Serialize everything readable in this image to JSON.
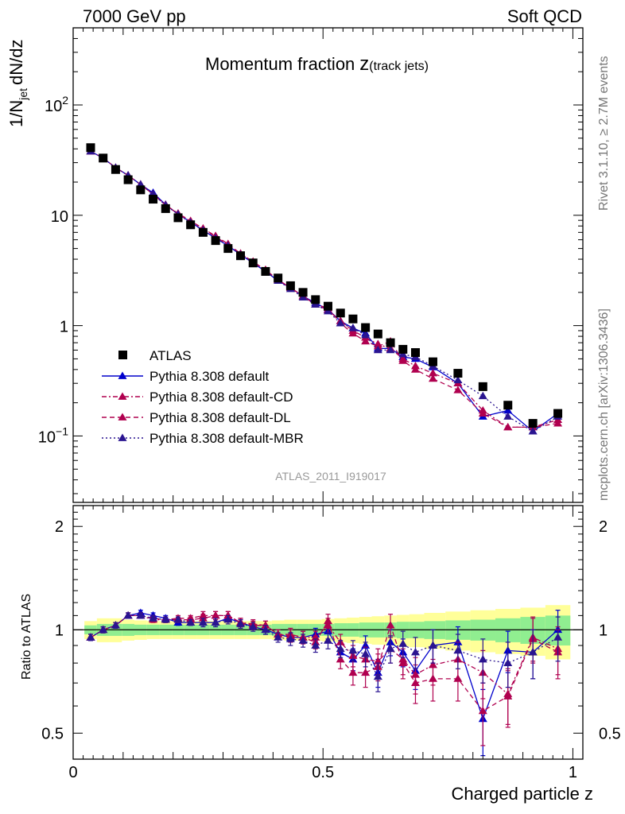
{
  "header": {
    "left": "7000 GeV pp",
    "right": "Soft QCD"
  },
  "plot": {
    "title": "Momentum fraction",
    "title_symbol": "z",
    "title_sub": "(track jets)",
    "watermark": "ATLAS_2011_I919017",
    "ylabel_main": "1/N",
    "ylabel_main_sub": "jet",
    "ylabel_main_rest": "dN/dz",
    "ylabel_ratio": "Ratio to ATLAS",
    "xlabel": "Charged particle z"
  },
  "side": {
    "rivet": "Rivet 3.1.10, ≥ 2.7M events",
    "mcplots": "mcplots.cern.ch [arXiv:1306.3436]"
  },
  "legend": [
    {
      "name": "ATLAS",
      "color": "#000000",
      "style": "data",
      "marker": "square"
    },
    {
      "name": "Pythia 8.308 default",
      "color": "#0000cc",
      "style": "solid",
      "marker": "triangle"
    },
    {
      "name": "Pythia 8.308 default-CD",
      "color": "#b0004f",
      "style": "dashdot",
      "marker": "triangle"
    },
    {
      "name": "Pythia 8.308 default-DL",
      "color": "#b0004f",
      "style": "dashed",
      "marker": "triangle"
    },
    {
      "name": "Pythia 8.308 default-MBR",
      "color": "#2a1490",
      "style": "dotted",
      "marker": "triangle"
    }
  ],
  "colors": {
    "band_green": "#90ee90",
    "band_yellow": "#ffff99"
  },
  "chart_data": {
    "type": "scatter",
    "x": [
      0.035,
      0.06,
      0.085,
      0.11,
      0.135,
      0.16,
      0.185,
      0.21,
      0.235,
      0.26,
      0.285,
      0.31,
      0.335,
      0.36,
      0.385,
      0.41,
      0.435,
      0.46,
      0.485,
      0.51,
      0.535,
      0.56,
      0.585,
      0.61,
      0.635,
      0.66,
      0.685,
      0.72,
      0.77,
      0.82,
      0.87,
      0.92,
      0.97
    ],
    "main": {
      "yscale": "log",
      "ylim": [
        0.025,
        500
      ],
      "yticks": [
        "10^-1",
        "1",
        "10",
        "10^2"
      ],
      "ATLAS": [
        41,
        33,
        26,
        21,
        17,
        14,
        11.5,
        9.5,
        8.2,
        7.0,
        5.9,
        5.0,
        4.3,
        3.7,
        3.1,
        2.7,
        2.3,
        2.0,
        1.72,
        1.5,
        1.3,
        1.15,
        0.96,
        0.84,
        0.7,
        0.61,
        0.57,
        0.47,
        0.37,
        0.28,
        0.19,
        0.13,
        0.16
      ],
      "series": [
        {
          "name": "Pythia 8.308 default",
          "values": [
            38,
            33,
            27,
            23,
            19,
            16,
            12.5,
            10.2,
            8.7,
            7.3,
            6.2,
            5.3,
            4.4,
            3.7,
            3.1,
            2.55,
            2.2,
            1.85,
            1.6,
            1.4,
            1.1,
            0.95,
            0.85,
            0.62,
            0.62,
            0.52,
            0.5,
            0.42,
            0.3,
            0.15,
            0.17,
            0.11,
            0.16
          ]
        },
        {
          "name": "Pythia 8.308 default-CD",
          "values": [
            38,
            33,
            27,
            23,
            19,
            15.5,
            12.4,
            10.3,
            8.8,
            7.5,
            6.4,
            5.4,
            4.5,
            3.8,
            3.2,
            2.6,
            2.2,
            1.85,
            1.55,
            1.38,
            1.1,
            0.9,
            0.78,
            0.68,
            0.62,
            0.5,
            0.43,
            0.37,
            0.3,
            0.17,
            0.12,
            0.12,
            0.14
          ]
        },
        {
          "name": "Pythia 8.308 default-DL",
          "values": [
            38,
            33,
            27,
            23,
            19,
            15.5,
            12.4,
            10.4,
            8.9,
            7.6,
            6.5,
            5.5,
            4.5,
            3.8,
            3.2,
            2.6,
            2.2,
            1.85,
            1.55,
            1.45,
            1.05,
            0.85,
            0.72,
            0.65,
            0.72,
            0.48,
            0.4,
            0.33,
            0.26,
            0.16,
            0.12,
            0.12,
            0.13
          ]
        },
        {
          "name": "Pythia 8.308 default-MBR",
          "values": [
            38,
            33,
            27,
            23,
            19,
            15.5,
            12.3,
            10.2,
            8.6,
            7.3,
            6.2,
            5.3,
            4.4,
            3.7,
            3.1,
            2.55,
            2.15,
            1.8,
            1.55,
            1.35,
            1.05,
            0.95,
            0.82,
            0.6,
            0.6,
            0.55,
            0.52,
            0.43,
            0.32,
            0.23,
            0.15,
            0.11,
            0.15
          ]
        }
      ]
    },
    "ratio": {
      "ylim": [
        0.42,
        2.3
      ],
      "yticks": [
        "0.5",
        "1",
        "2"
      ],
      "green_band_halfwidth": [
        0.03,
        0.04,
        0.04,
        0.04,
        0.035,
        0.035,
        0.035,
        0.035,
        0.035,
        0.035,
        0.035,
        0.035,
        0.035,
        0.035,
        0.035,
        0.04,
        0.04,
        0.04,
        0.04,
        0.04,
        0.045,
        0.045,
        0.05,
        0.05,
        0.05,
        0.055,
        0.055,
        0.06,
        0.065,
        0.07,
        0.08,
        0.09,
        0.1
      ],
      "yellow_band_halfwidth": [
        0.06,
        0.08,
        0.08,
        0.07,
        0.065,
        0.06,
        0.06,
        0.06,
        0.06,
        0.06,
        0.06,
        0.06,
        0.06,
        0.06,
        0.06,
        0.065,
        0.07,
        0.07,
        0.07,
        0.075,
        0.08,
        0.085,
        0.09,
        0.095,
        0.1,
        0.105,
        0.11,
        0.12,
        0.13,
        0.14,
        0.15,
        0.16,
        0.18
      ],
      "series": [
        {
          "name": "Pythia 8.308 default",
          "values": [
            0.95,
            1.0,
            1.03,
            1.1,
            1.12,
            1.1,
            1.08,
            1.05,
            1.05,
            1.05,
            1.05,
            1.08,
            1.05,
            1.02,
            1.0,
            0.97,
            0.95,
            0.95,
            0.97,
            0.99,
            0.86,
            0.82,
            0.9,
            0.75,
            0.92,
            0.86,
            0.76,
            0.9,
            0.92,
            0.55,
            0.87,
            0.86,
            1.0
          ],
          "err": [
            0.02,
            0.02,
            0.02,
            0.02,
            0.02,
            0.02,
            0.02,
            0.02,
            0.02,
            0.02,
            0.02,
            0.02,
            0.02,
            0.02,
            0.03,
            0.03,
            0.03,
            0.04,
            0.04,
            0.05,
            0.05,
            0.06,
            0.06,
            0.07,
            0.08,
            0.08,
            0.09,
            0.1,
            0.1,
            0.12,
            0.12,
            0.14,
            0.14
          ]
        },
        {
          "name": "Pythia 8.308 default-CD",
          "values": [
            0.95,
            1.0,
            1.03,
            1.1,
            1.1,
            1.07,
            1.07,
            1.07,
            1.07,
            1.08,
            1.1,
            1.1,
            1.05,
            1.04,
            1.03,
            0.97,
            0.96,
            0.95,
            0.95,
            1.03,
            0.92,
            0.84,
            0.82,
            0.81,
            0.88,
            0.82,
            0.74,
            0.79,
            0.82,
            0.75,
            0.65,
            0.95,
            0.88
          ],
          "err": [
            0.02,
            0.02,
            0.02,
            0.02,
            0.02,
            0.02,
            0.02,
            0.02,
            0.02,
            0.03,
            0.03,
            0.03,
            0.03,
            0.03,
            0.03,
            0.03,
            0.04,
            0.04,
            0.04,
            0.05,
            0.05,
            0.06,
            0.07,
            0.07,
            0.08,
            0.08,
            0.09,
            0.1,
            0.1,
            0.12,
            0.12,
            0.14,
            0.14
          ]
        },
        {
          "name": "Pythia 8.308 default-DL",
          "values": [
            0.95,
            1.0,
            1.03,
            1.1,
            1.1,
            1.08,
            1.07,
            1.08,
            1.08,
            1.1,
            1.1,
            1.1,
            1.05,
            1.03,
            1.03,
            0.97,
            0.97,
            0.95,
            0.92,
            1.06,
            0.82,
            0.75,
            0.75,
            0.78,
            1.03,
            0.8,
            0.7,
            0.72,
            0.72,
            0.58,
            0.64,
            0.94,
            0.86
          ],
          "err": [
            0.02,
            0.02,
            0.02,
            0.02,
            0.02,
            0.02,
            0.02,
            0.02,
            0.02,
            0.03,
            0.03,
            0.03,
            0.03,
            0.03,
            0.03,
            0.03,
            0.04,
            0.04,
            0.04,
            0.05,
            0.05,
            0.06,
            0.07,
            0.07,
            0.08,
            0.08,
            0.09,
            0.1,
            0.1,
            0.12,
            0.12,
            0.14,
            0.14
          ]
        },
        {
          "name": "Pythia 8.308 default-MBR",
          "values": [
            0.95,
            1.0,
            1.03,
            1.1,
            1.1,
            1.08,
            1.07,
            1.07,
            1.05,
            1.05,
            1.05,
            1.07,
            1.04,
            1.02,
            1.0,
            0.95,
            0.94,
            0.93,
            0.9,
            0.93,
            0.88,
            0.87,
            0.85,
            0.73,
            0.88,
            0.91,
            0.86,
            0.9,
            0.87,
            0.82,
            0.8,
            0.86,
            0.95
          ],
          "err": [
            0.02,
            0.02,
            0.02,
            0.02,
            0.02,
            0.02,
            0.02,
            0.02,
            0.02,
            0.03,
            0.03,
            0.03,
            0.03,
            0.03,
            0.03,
            0.03,
            0.04,
            0.04,
            0.04,
            0.05,
            0.05,
            0.06,
            0.07,
            0.07,
            0.08,
            0.08,
            0.09,
            0.1,
            0.1,
            0.12,
            0.12,
            0.14,
            0.14
          ]
        }
      ]
    },
    "xlim": [
      0,
      1.02
    ],
    "xticks": [
      "0",
      "0.5",
      "1"
    ]
  }
}
